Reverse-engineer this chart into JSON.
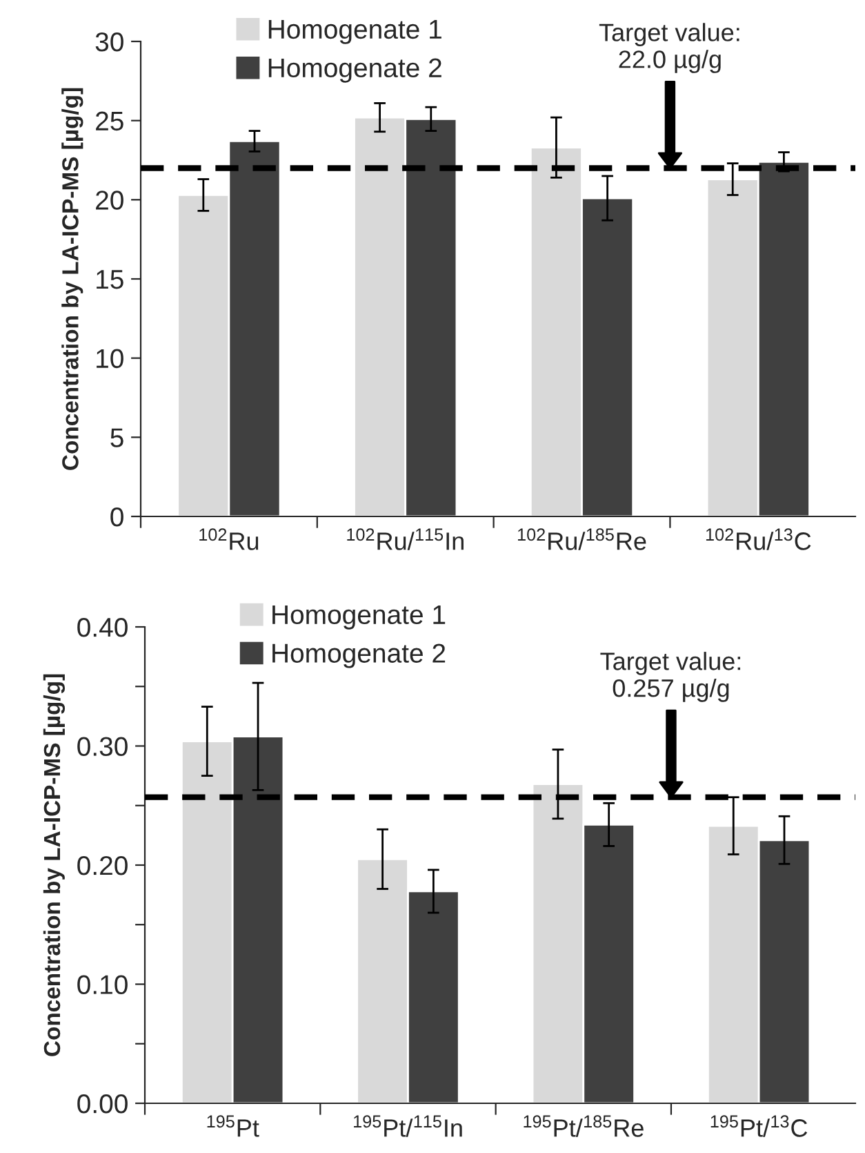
{
  "chart_data": [
    {
      "type": "bar",
      "ylabel": "Concentration by LA-ICP-MS [µg/g]",
      "categories": [
        "$^{102}$Ru",
        "$^{102}$Ru/$^{115}$In",
        "$^{102}$Ru/$^{185}$Re",
        "$^{102}$Ru/$^{13}$C"
      ],
      "series": [
        {
          "name": "Homogenate 1",
          "color": "#d9d9d9",
          "values": [
            20.3,
            25.2,
            23.3,
            21.3
          ],
          "errors": [
            1.0,
            0.9,
            1.9,
            1.0
          ]
        },
        {
          "name": "Homogenate 2",
          "color": "#404040",
          "values": [
            23.7,
            25.1,
            20.1,
            22.4
          ],
          "errors": [
            0.65,
            0.75,
            1.4,
            0.6
          ]
        }
      ],
      "ylim": [
        0,
        30
      ],
      "yticks": [
        0,
        5,
        10,
        15,
        20,
        25,
        30
      ],
      "ref_lines": [
        {
          "axis": "y",
          "value": 22.0,
          "color": "#000000",
          "line_style": "dashed"
        }
      ],
      "annotations": [
        "Target value:\n22.0 µg/g"
      ],
      "grid": false,
      "legend": "top left"
    },
    {
      "type": "bar",
      "ylabel": "Concentration by LA-ICP-MS [µg/g]",
      "categories": [
        "$^{195}$Pt",
        "$^{195}$Pt/$^{115}$In",
        "$^{195}$Pt/$^{185}$Re",
        "$^{195}$Pt/$^{13}$C"
      ],
      "series": [
        {
          "name": "Homogenate 1",
          "color": "#d9d9d9",
          "values": [
            0.304,
            0.205,
            0.268,
            0.233
          ],
          "errors": [
            0.029,
            0.025,
            0.029,
            0.024
          ]
        },
        {
          "name": "Homogenate 2",
          "color": "#404040",
          "values": [
            0.308,
            0.178,
            0.234,
            0.221
          ],
          "errors": [
            0.045,
            0.018,
            0.018,
            0.02
          ]
        }
      ],
      "ylim": [
        0,
        0.4
      ],
      "yticks": [
        {
          "value": 0,
          "label": "0.00"
        },
        {
          "value": 0.05,
          "label": null
        },
        {
          "value": 0.1,
          "label": "0.10"
        },
        {
          "value": 0.15,
          "label": null
        },
        {
          "value": 0.2,
          "label": "0.20"
        },
        {
          "value": 0.25,
          "label": null
        },
        {
          "value": 0.3,
          "label": "0.30"
        },
        {
          "value": 0.35,
          "label": null
        },
        {
          "value": 0.4,
          "label": "0.40"
        }
      ],
      "ref_lines": [
        {
          "axis": "y",
          "value": 0.257,
          "color": "#000000",
          "line_style": "dashed"
        }
      ],
      "annotations": [
        "Target value:\n0.257 µg/g"
      ],
      "grid": false,
      "legend": "top left"
    }
  ]
}
